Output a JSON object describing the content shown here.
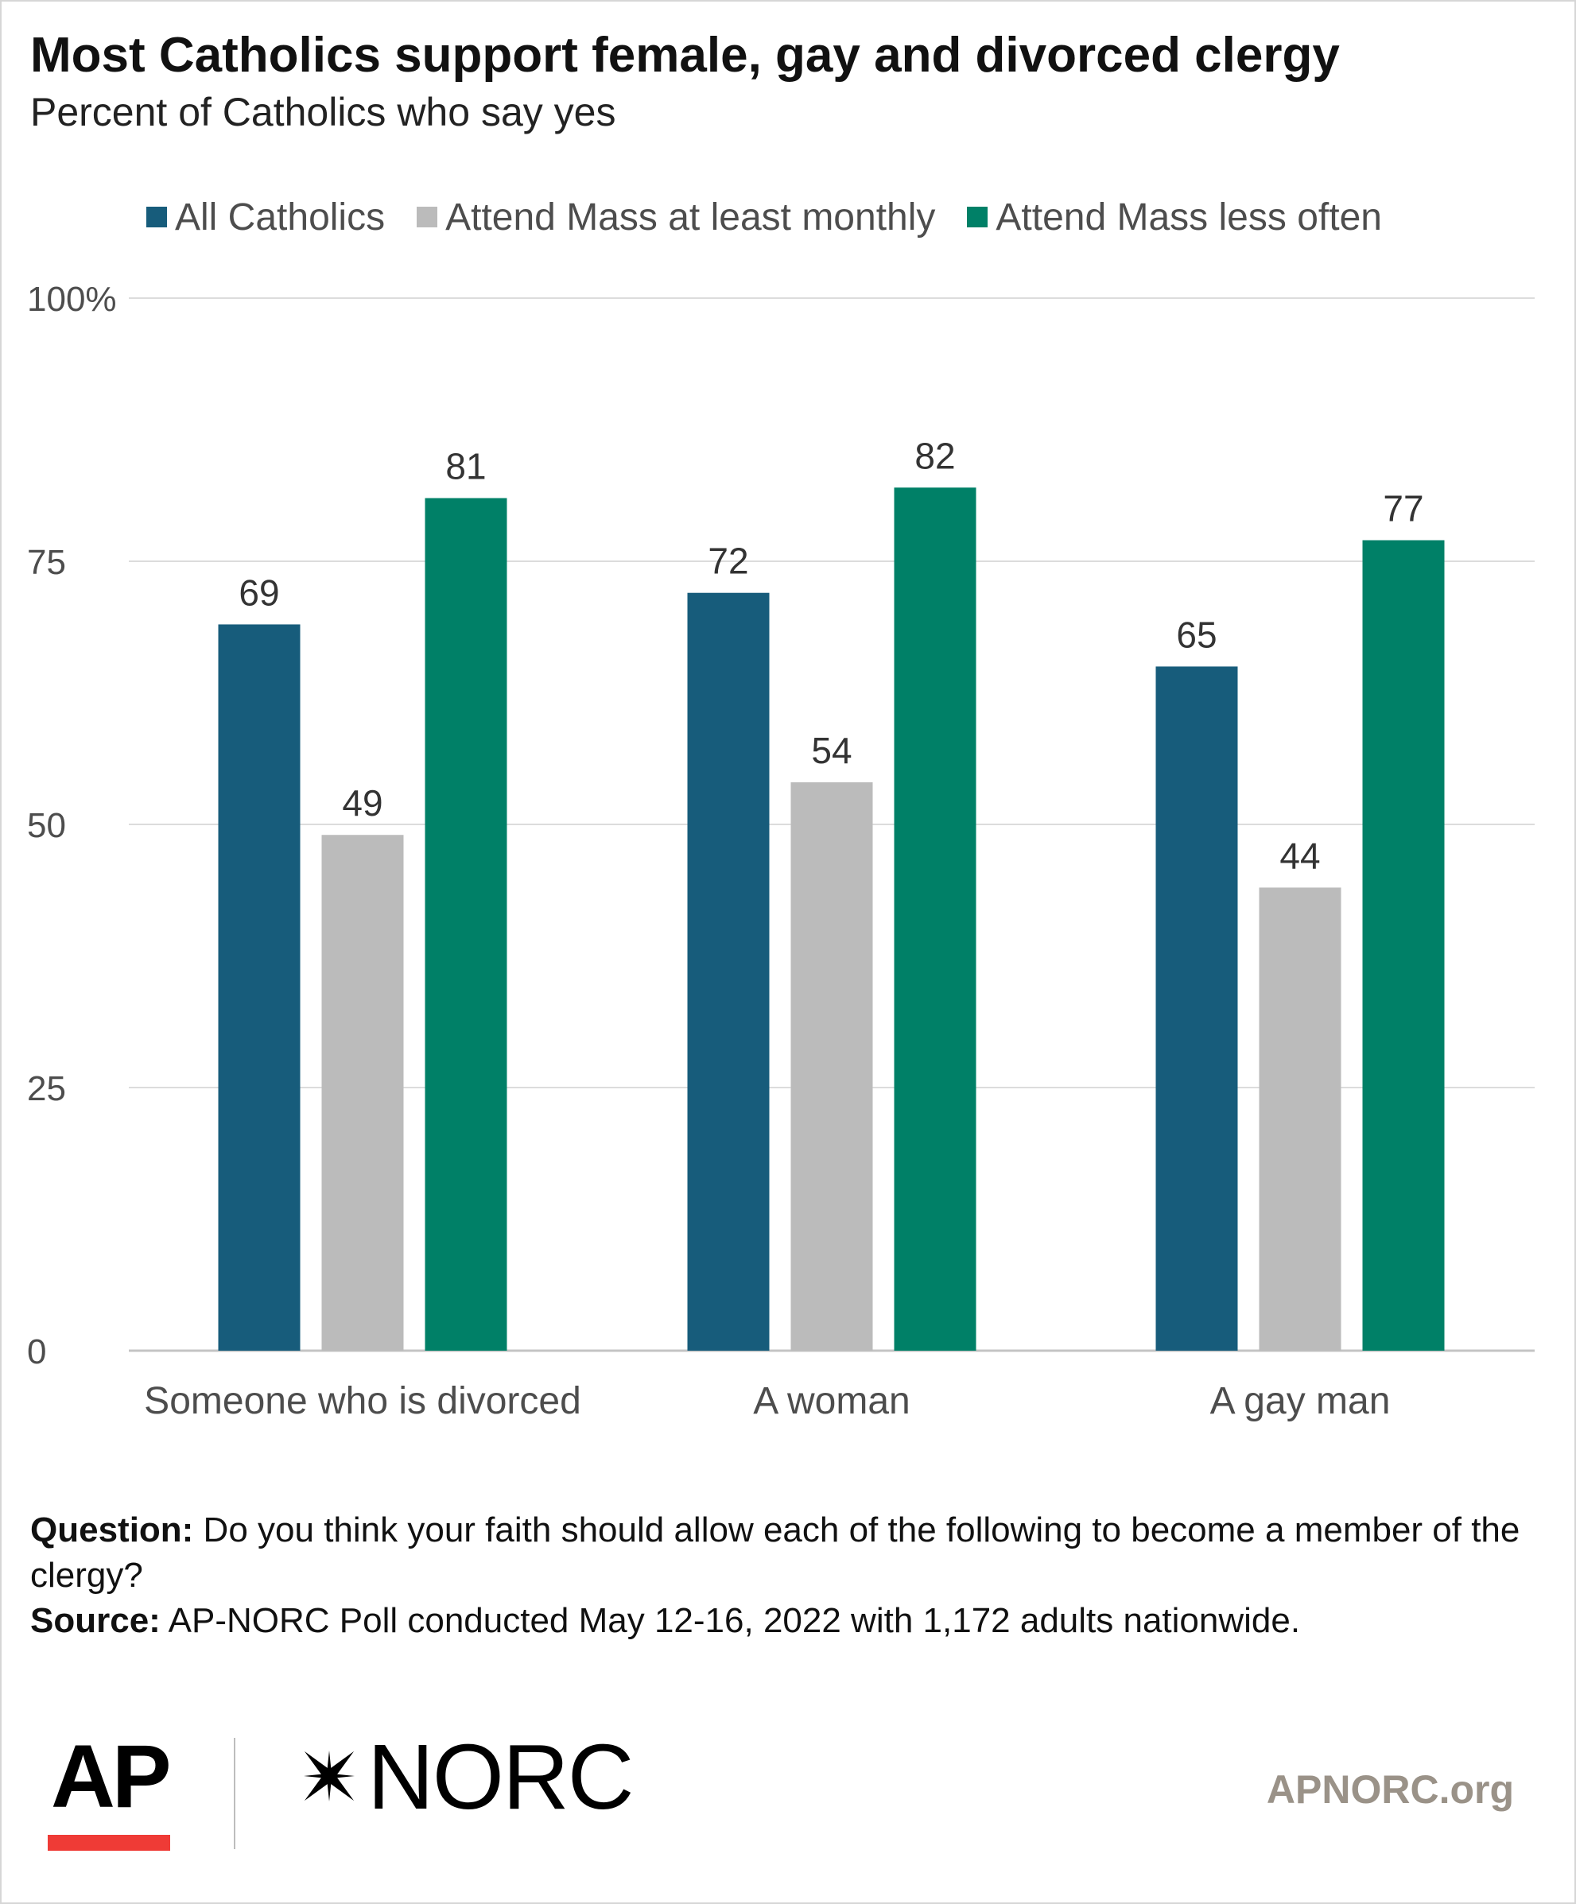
{
  "header": {
    "title": "Most Catholics support female, gay and divorced clergy",
    "subtitle": "Percent of Catholics who say yes"
  },
  "legend": [
    {
      "label": "All Catholics",
      "color": "#175c7b"
    },
    {
      "label": "Attend Mass at least monthly",
      "color": "#bbbbbb"
    },
    {
      "label": "Attend Mass less often",
      "color": "#008067"
    }
  ],
  "chart_data": {
    "type": "bar",
    "title": "Most Catholics support female, gay and divorced clergy",
    "subtitle": "Percent of Catholics who say yes",
    "categories": [
      "Someone who is divorced",
      "A woman",
      "A gay man"
    ],
    "series": [
      {
        "name": "All Catholics",
        "color": "#175c7b",
        "values": [
          69,
          72,
          65
        ]
      },
      {
        "name": "Attend Mass at least monthly",
        "color": "#bbbbbb",
        "values": [
          49,
          54,
          44
        ]
      },
      {
        "name": "Attend Mass less often",
        "color": "#008067",
        "values": [
          81,
          82,
          77
        ]
      }
    ],
    "ylim": [
      0,
      100
    ],
    "yticks": [
      0,
      25,
      50,
      75,
      100
    ],
    "ytick_labels": [
      "0",
      "25",
      "50",
      "75",
      "100%"
    ],
    "grid": true,
    "legend_position": "top"
  },
  "notes": {
    "question_label": "Question:",
    "question_text": " Do you think your faith should allow each of the following to become a member of the clergy?",
    "source_label": "Source:",
    "source_text": " AP-NORC Poll conducted May 12-16, 2022 with 1,172 adults nationwide."
  },
  "footer": {
    "ap_logo": "AP",
    "norc_logo": "NORC",
    "site": "APNORC.org"
  }
}
